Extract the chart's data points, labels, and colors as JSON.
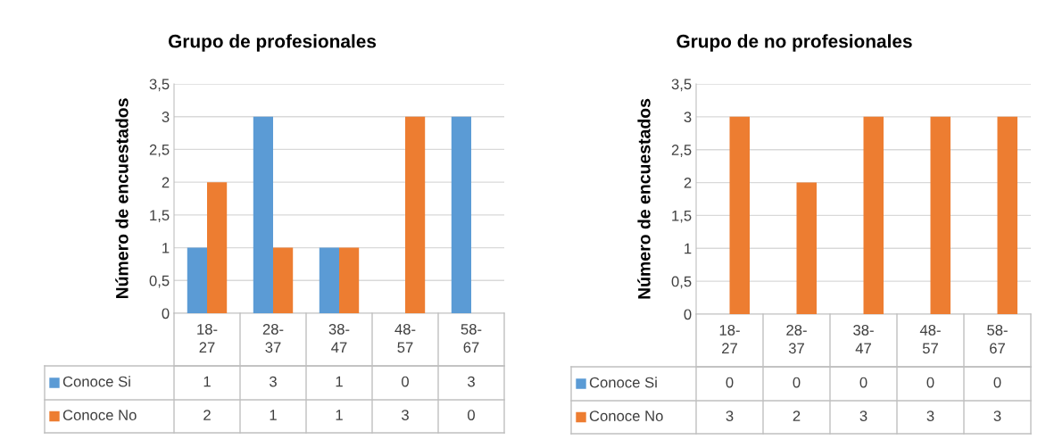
{
  "chart_data": [
    {
      "type": "bar",
      "title": "Grupo de profesionales",
      "ylabel": "Número de encuestados",
      "categories": [
        "18-27",
        "28-37",
        "38-47",
        "48-57",
        "58-67"
      ],
      "series": [
        {
          "name": "Conoce Si",
          "color": "#5b9bd5",
          "values": [
            1,
            3,
            1,
            0,
            3
          ]
        },
        {
          "name": "Conoce No",
          "color": "#ed7d31",
          "values": [
            2,
            1,
            1,
            3,
            0
          ]
        }
      ],
      "ylim": [
        0,
        3.5
      ],
      "yticks": [
        {
          "value": 0,
          "label": "0"
        },
        {
          "value": 0.5,
          "label": "0,5"
        },
        {
          "value": 1,
          "label": "1"
        },
        {
          "value": 1.5,
          "label": "1,5"
        },
        {
          "value": 2,
          "label": "2"
        },
        {
          "value": 2.5,
          "label": "2,5"
        },
        {
          "value": 3,
          "label": "3"
        },
        {
          "value": 3.5,
          "label": "3,5"
        }
      ],
      "grid": "y",
      "data_labels": true,
      "legend": "bottom"
    },
    {
      "type": "bar",
      "title": "Grupo de no profesionales",
      "ylabel": "Número de encuestados",
      "categories": [
        "18-27",
        "28-37",
        "38-47",
        "48-57",
        "58-67"
      ],
      "series": [
        {
          "name": "Conoce Si",
          "color": "#5b9bd5",
          "values": [
            0,
            0,
            0,
            0,
            0
          ]
        },
        {
          "name": "Conoce No",
          "color": "#ed7d31",
          "values": [
            3,
            2,
            3,
            3,
            3
          ]
        }
      ],
      "ylim": [
        0,
        3.5
      ],
      "yticks": [
        {
          "value": 0,
          "label": "0"
        },
        {
          "value": 0.5,
          "label": "0,5"
        },
        {
          "value": 1,
          "label": "1"
        },
        {
          "value": 1.5,
          "label": "1,5"
        },
        {
          "value": 2,
          "label": "2"
        },
        {
          "value": 2.5,
          "label": "2,5"
        },
        {
          "value": 3,
          "label": "3"
        },
        {
          "value": 3.5,
          "label": "3,5"
        }
      ],
      "grid": "y",
      "data_labels": true,
      "legend": "bottom"
    }
  ]
}
